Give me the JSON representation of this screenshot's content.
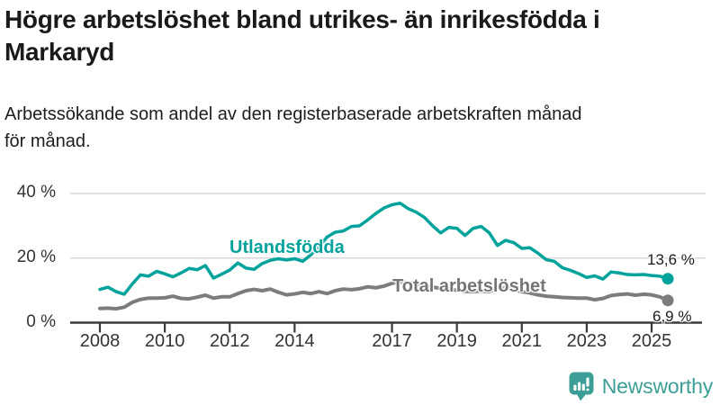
{
  "header": {
    "title_lines": [
      "Högre arbetslöshet bland utrikes- än inrikesfödda i",
      "Markaryd"
    ],
    "subtitle_lines": [
      "Arbetssökande som andel av den registerbaserade arbetskraften månad",
      "för månad."
    ]
  },
  "footer": {
    "brand": "Newsworthy",
    "logo_icon": "newsworthy-speech-bubble-bar-chart",
    "brand_color": "#3d9e97"
  },
  "chart_data": {
    "type": "line",
    "title": "Högre arbetslöshet bland utrikes- än inrikesfödda i Markaryd",
    "subtitle": "Arbetssökande som andel av den registerbaserade arbetskraften månad för månad.",
    "unit": "%",
    "grid": "horizontal",
    "background": "#ffffff",
    "grid_color": "#d9d9d9",
    "axis_color": "#3a3a3a",
    "ylim": [
      0,
      44
    ],
    "xlim": [
      2007.2,
      2026.7
    ],
    "y_ticks": [
      {
        "value": 0,
        "label": "0 %"
      },
      {
        "value": 20,
        "label": "20 %"
      },
      {
        "value": 40,
        "label": "40 %"
      }
    ],
    "x_ticks": [
      {
        "year": 2008,
        "label": "2008"
      },
      {
        "year": 2010,
        "label": "2010"
      },
      {
        "year": 2012,
        "label": "2012"
      },
      {
        "year": 2014,
        "label": "2014"
      },
      {
        "year": 2017,
        "label": "2017"
      },
      {
        "year": 2019,
        "label": "2019"
      },
      {
        "year": 2021,
        "label": "2021"
      },
      {
        "year": 2023,
        "label": "2023"
      },
      {
        "year": 2025,
        "label": "2025"
      }
    ],
    "x": [
      2008,
      2008.25,
      2008.5,
      2008.75,
      2009,
      2009.25,
      2009.5,
      2009.75,
      2010,
      2010.25,
      2010.5,
      2010.75,
      2011,
      2011.25,
      2011.5,
      2011.75,
      2012,
      2012.25,
      2012.5,
      2012.75,
      2013,
      2013.25,
      2013.5,
      2013.75,
      2014,
      2014.25,
      2014.5,
      2014.75,
      2015,
      2015.25,
      2015.5,
      2015.75,
      2016,
      2016.25,
      2016.5,
      2016.75,
      2017,
      2017.25,
      2017.5,
      2017.75,
      2018,
      2018.25,
      2018.5,
      2018.75,
      2019,
      2019.25,
      2019.5,
      2019.75,
      2020,
      2020.25,
      2020.5,
      2020.75,
      2021,
      2021.25,
      2021.5,
      2021.75,
      2022,
      2022.25,
      2022.5,
      2022.75,
      2023,
      2023.25,
      2023.5,
      2023.75,
      2024,
      2024.25,
      2024.5,
      2024.75,
      2025,
      2025.25,
      2025.5
    ],
    "series": [
      {
        "name": "Utlandsfödda",
        "color": "#00a39c",
        "line_width": 3.5,
        "end_value": 13.6,
        "end_label": "13,6 %",
        "values": [
          10.3,
          11.0,
          9.6,
          8.8,
          12.0,
          14.8,
          14.4,
          15.9,
          15.1,
          14.2,
          15.4,
          16.8,
          16.4,
          17.7,
          13.8,
          15.0,
          16.3,
          18.5,
          16.9,
          16.5,
          18.3,
          19.3,
          19.8,
          19.4,
          19.8,
          19.0,
          21.0,
          23.5,
          26.5,
          28.0,
          28.4,
          29.8,
          30.0,
          31.8,
          33.8,
          35.5,
          36.5,
          37.0,
          35.3,
          34.2,
          32.6,
          30.0,
          27.8,
          29.5,
          29.2,
          27.0,
          29.2,
          29.8,
          27.8,
          23.9,
          25.5,
          24.8,
          23.0,
          23.2,
          21.5,
          19.5,
          19.0,
          17.0,
          16.2,
          15.2,
          14.0,
          14.5,
          13.5,
          15.7,
          15.4,
          14.9,
          14.8,
          14.9,
          14.6,
          14.4,
          13.6
        ]
      },
      {
        "name": "Total arbetslöshet",
        "color": "#7c7c7c",
        "line_width": 4,
        "end_value": 6.9,
        "end_label": "6,9 %",
        "values": [
          4.4,
          4.5,
          4.3,
          4.8,
          6.3,
          7.2,
          7.6,
          7.6,
          7.7,
          8.2,
          7.5,
          7.4,
          7.9,
          8.5,
          7.6,
          8.0,
          8.0,
          9.0,
          9.9,
          10.3,
          9.9,
          10.4,
          9.4,
          8.6,
          8.9,
          9.4,
          9.0,
          9.6,
          9.0,
          9.9,
          10.4,
          10.2,
          10.5,
          11.1,
          10.8,
          11.3,
          12.2,
          12.6,
          12.4,
          12.0,
          11.6,
          11.0,
          10.6,
          10.4,
          10.0,
          9.7,
          9.6,
          9.8,
          9.6,
          10.6,
          10.8,
          10.2,
          9.6,
          9.2,
          8.6,
          8.2,
          8.0,
          7.8,
          7.7,
          7.6,
          7.6,
          7.1,
          7.5,
          8.4,
          8.7,
          8.9,
          8.5,
          8.8,
          8.6,
          8.0,
          6.9
        ]
      }
    ],
    "legend_position": "inline-labels"
  }
}
